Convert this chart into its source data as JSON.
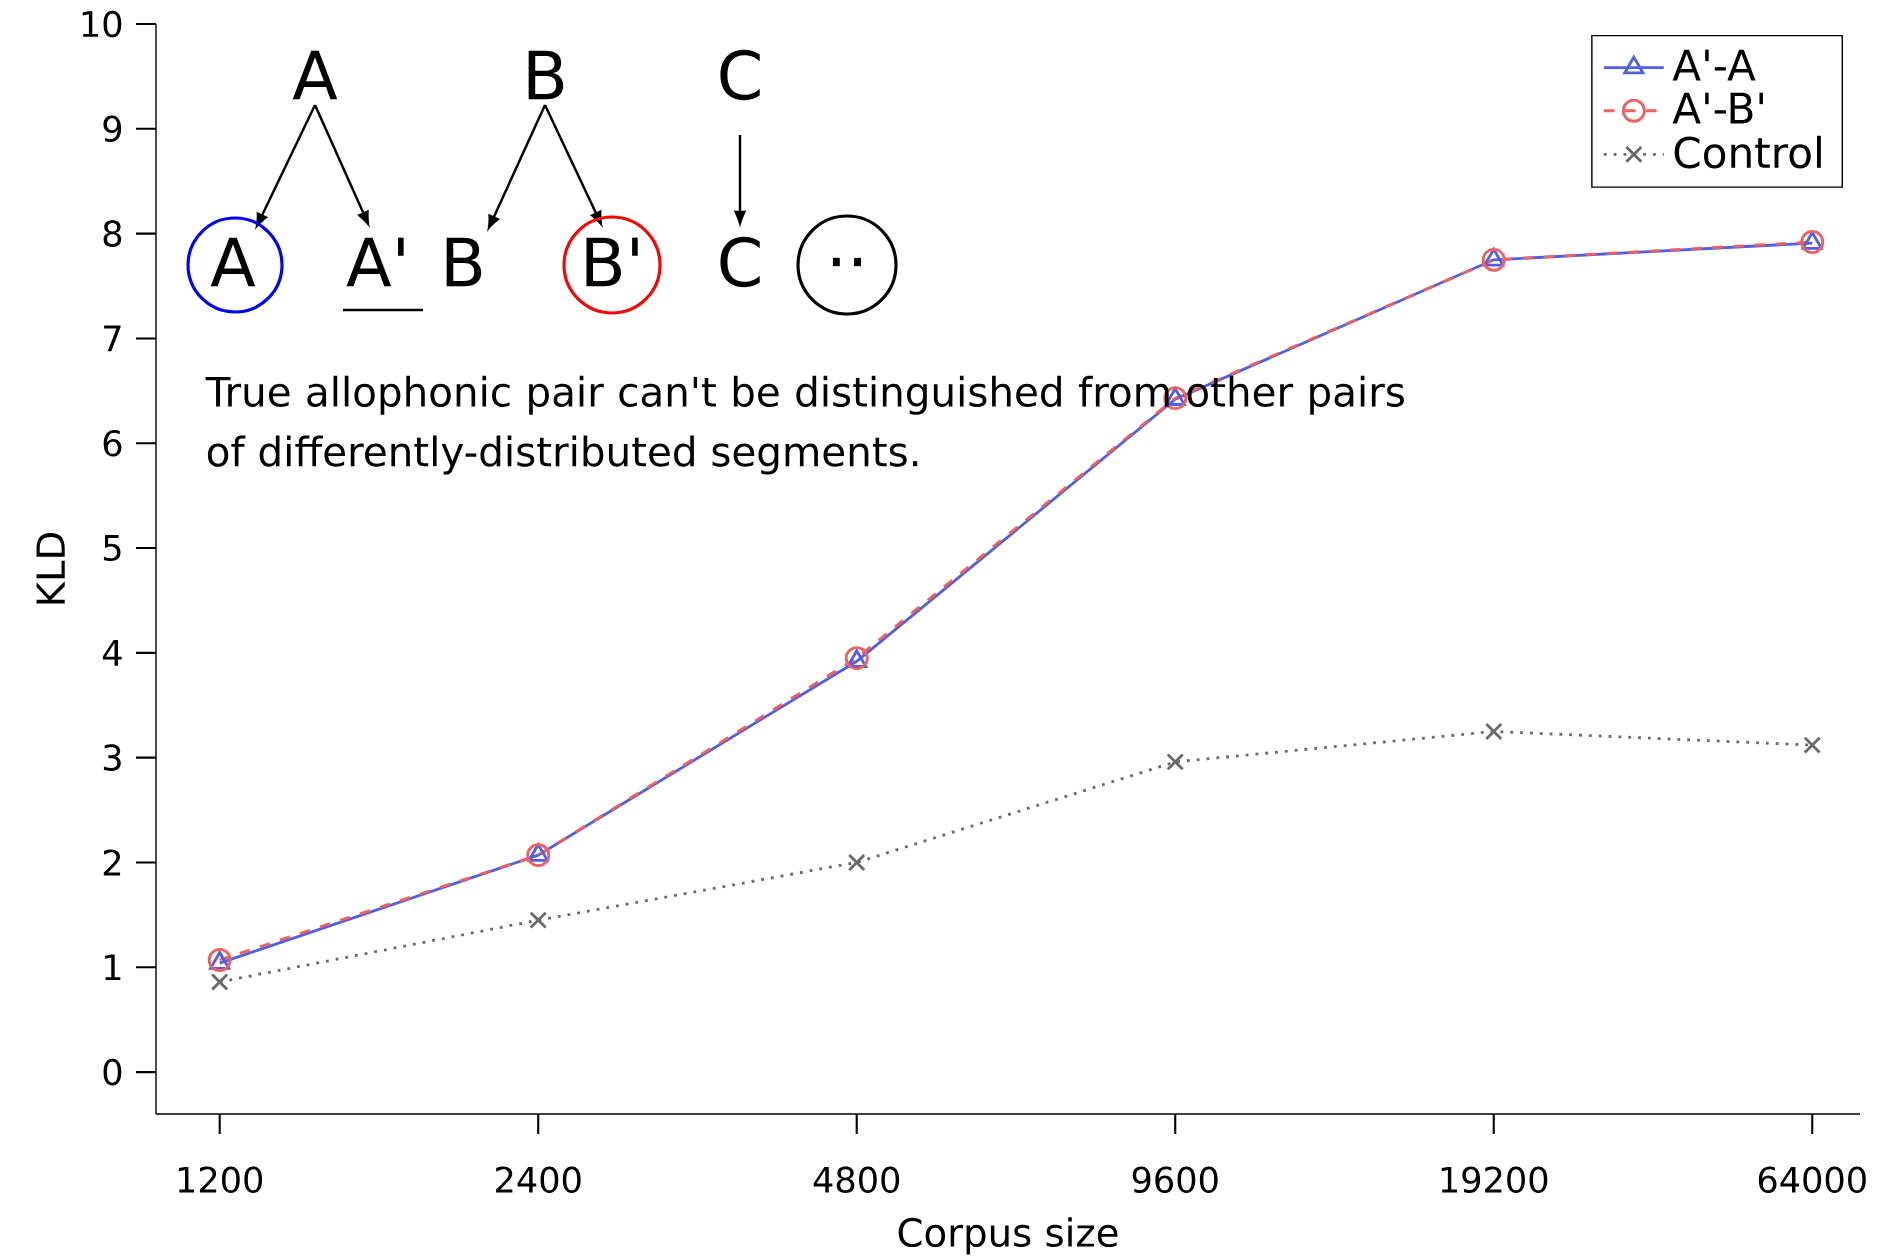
{
  "chart_data": {
    "type": "line",
    "xlabel": "Corpus size",
    "ylabel": "KLD",
    "categories": [
      "1200",
      "2400",
      "4800",
      "9600",
      "19200",
      "64000"
    ],
    "series": [
      {
        "name": "A'-A",
        "color": "#4f5fe8",
        "marker": "triangle",
        "line_style": "solid",
        "values": [
          1.04,
          2.07,
          3.92,
          6.42,
          7.75,
          7.91
        ]
      },
      {
        "name": "A'-B'",
        "color": "#f06060",
        "marker": "circle",
        "line_style": "dashed",
        "values": [
          1.07,
          2.07,
          3.95,
          6.43,
          7.75,
          7.92
        ]
      },
      {
        "name": "Control",
        "color": "#6a6a6a",
        "marker": "cross",
        "line_style": "dotted",
        "values": [
          0.86,
          1.45,
          2.0,
          2.96,
          3.25,
          3.12
        ]
      }
    ],
    "ylim": [
      -0.4,
      10
    ],
    "yticks": [
      0,
      1,
      2,
      3,
      4,
      5,
      6,
      7,
      8,
      9,
      10
    ],
    "grid": false,
    "legend": "top right",
    "annotations": [
      "A",
      "B",
      "C",
      "A",
      "A'",
      "B",
      "B'",
      "C",
      "..",
      "True allophonic pair can't be distinguished from other pairs of differently-distributed segments."
    ]
  }
}
